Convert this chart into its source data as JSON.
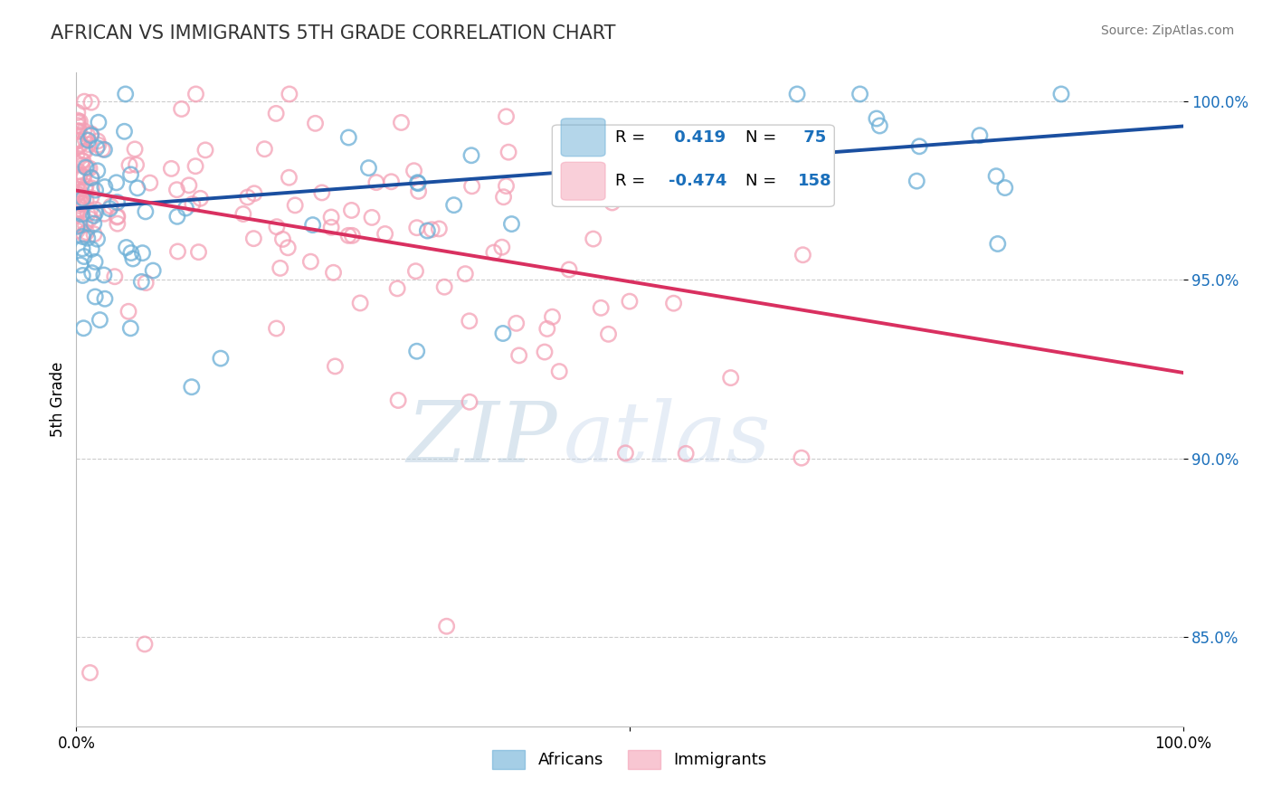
{
  "title": "AFRICAN VS IMMIGRANTS 5TH GRADE CORRELATION CHART",
  "source_text": "Source: ZipAtlas.com",
  "ylabel": "5th Grade",
  "xmin": 0.0,
  "xmax": 1.0,
  "ymin": 0.825,
  "ymax": 1.008,
  "african_color": "#6aaed6",
  "immigrant_color": "#f4a0b5",
  "african_edge_color": "#6aaed6",
  "immigrant_edge_color": "#f4a0b5",
  "african_line_color": "#1a4fa0",
  "immigrant_line_color": "#d93060",
  "african_R": 0.419,
  "african_N": 75,
  "immigrant_R": -0.474,
  "immigrant_N": 158,
  "legend_R_color": "#1a6fbb",
  "watermark_zip": "ZIP",
  "watermark_atlas": "atlas",
  "background_color": "#ffffff",
  "grid_color": "#cccccc",
  "yticks": [
    0.85,
    0.9,
    0.95,
    1.0
  ],
  "ytick_labels": [
    "85.0%",
    "90.0%",
    "95.0%",
    "100.0%"
  ],
  "title_fontsize": 15,
  "tick_fontsize": 12,
  "legend_fontsize": 13
}
